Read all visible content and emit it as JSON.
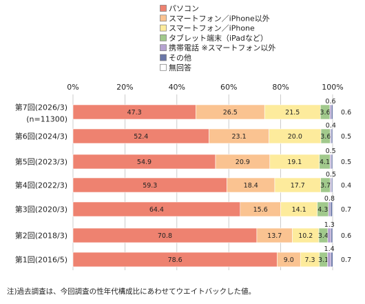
{
  "chart_data": {
    "type": "bar",
    "orientation": "horizontal",
    "stacked": true,
    "xlim": [
      0,
      100
    ],
    "x_ticks": [
      "0%",
      "20%",
      "40%",
      "60%",
      "80%",
      "100%"
    ],
    "legend_position": "top",
    "categories": [
      [
        "第7回(2026/3)",
        "(n=11300)"
      ],
      [
        "第6回(2024/3)"
      ],
      [
        "第5回(2023/3)"
      ],
      [
        "第4回(2022/3)"
      ],
      [
        "第3回(2020/3)"
      ],
      [
        "第2回(2018/3)"
      ],
      [
        "第1回(2016/5)"
      ]
    ],
    "series": [
      {
        "name": "パソコン",
        "color": "#EE8270",
        "values": [
          47.3,
          52.4,
          54.9,
          59.3,
          64.4,
          70.8,
          78.6
        ]
      },
      {
        "name": "スマートフォン／iPhone以外",
        "color": "#FAC391",
        "values": [
          26.5,
          23.1,
          20.9,
          18.4,
          15.6,
          13.7,
          9.0
        ]
      },
      {
        "name": "スマートフォン／iPhone",
        "color": "#FDEB9C",
        "values": [
          21.5,
          20.0,
          19.1,
          17.7,
          14.1,
          10.2,
          7.3
        ]
      },
      {
        "name": "タブレット端末（iPadなど）",
        "color": "#A1C98C",
        "values": [
          3.6,
          3.6,
          4.1,
          3.7,
          4.3,
          3.4,
          3.1
        ]
      },
      {
        "name": "携帯電話 ※スマートフォン以外",
        "color": "#B6A3D1",
        "values": [
          0.6,
          0.4,
          0.5,
          0.5,
          0.8,
          1.3,
          1.4
        ]
      },
      {
        "name": "その他",
        "color": "#6A77A8",
        "values": [
          0.6,
          0.5,
          0.5,
          0.4,
          0.7,
          0.6,
          0.7
        ]
      },
      {
        "name": "無回答",
        "color": "#FFFFFF",
        "values": [
          0,
          0,
          0,
          0,
          0,
          0,
          0
        ]
      }
    ],
    "note": "注)過去調査は、今回調査の性年代構成比にあわせてウエイトバックした値。"
  }
}
